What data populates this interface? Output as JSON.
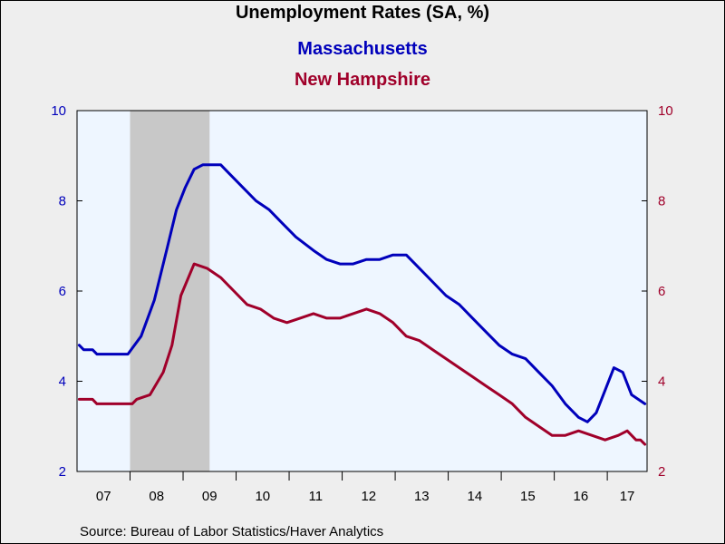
{
  "chart_data": {
    "type": "line",
    "title": "Unemployment Rates (SA, %)",
    "source": "Source:  Bureau of Labor Statistics/Haver Analytics",
    "x_tick_labels": [
      "07",
      "08",
      "09",
      "10",
      "11",
      "12",
      "13",
      "14",
      "15",
      "16",
      "17"
    ],
    "xlim": [
      "2007-01",
      "2017-09"
    ],
    "ylim": [
      2,
      10
    ],
    "y_ticks": [
      "2",
      "4",
      "6",
      "8",
      "10"
    ],
    "y2_ticks": [
      "2",
      "4",
      "6",
      "8",
      "10"
    ],
    "recession_shading": {
      "start": "2008-01",
      "end": "2009-06"
    },
    "grid": false,
    "legend_placement": "top-center",
    "colors": {
      "massachusetts": "#0000bb",
      "new_hampshire": "#a0002a",
      "recession": "#c8c8c8",
      "plot_bg": "#eef6ff",
      "background": "#eeeeee"
    },
    "series": [
      {
        "name": "Massachusetts",
        "axis": "left",
        "points": [
          [
            "2007-01",
            4.8
          ],
          [
            "2007-02",
            4.7
          ],
          [
            "2007-04",
            4.7
          ],
          [
            "2007-05",
            4.6
          ],
          [
            "2007-12",
            4.6
          ],
          [
            "2008-03",
            5.0
          ],
          [
            "2008-06",
            5.8
          ],
          [
            "2008-09",
            7.0
          ],
          [
            "2008-11",
            7.8
          ],
          [
            "2009-01",
            8.3
          ],
          [
            "2009-03",
            8.7
          ],
          [
            "2009-05",
            8.8
          ],
          [
            "2009-09",
            8.8
          ],
          [
            "2009-11",
            8.6
          ],
          [
            "2010-02",
            8.3
          ],
          [
            "2010-05",
            8.0
          ],
          [
            "2010-08",
            7.8
          ],
          [
            "2010-11",
            7.5
          ],
          [
            "2011-02",
            7.2
          ],
          [
            "2011-06",
            6.9
          ],
          [
            "2011-09",
            6.7
          ],
          [
            "2011-12",
            6.6
          ],
          [
            "2012-03",
            6.6
          ],
          [
            "2012-06",
            6.7
          ],
          [
            "2012-09",
            6.7
          ],
          [
            "2012-12",
            6.8
          ],
          [
            "2013-03",
            6.8
          ],
          [
            "2013-06",
            6.5
          ],
          [
            "2013-09",
            6.2
          ],
          [
            "2013-12",
            5.9
          ],
          [
            "2014-03",
            5.7
          ],
          [
            "2014-06",
            5.4
          ],
          [
            "2014-09",
            5.1
          ],
          [
            "2014-12",
            4.8
          ],
          [
            "2015-03",
            4.6
          ],
          [
            "2015-06",
            4.5
          ],
          [
            "2015-09",
            4.2
          ],
          [
            "2015-12",
            3.9
          ],
          [
            "2016-03",
            3.5
          ],
          [
            "2016-06",
            3.2
          ],
          [
            "2016-08",
            3.1
          ],
          [
            "2016-10",
            3.3
          ],
          [
            "2016-12",
            3.8
          ],
          [
            "2017-02",
            4.3
          ],
          [
            "2017-04",
            4.2
          ],
          [
            "2017-06",
            3.7
          ],
          [
            "2017-09",
            3.5
          ]
        ]
      },
      {
        "name": "New Hampshire",
        "axis": "right",
        "points": [
          [
            "2007-01",
            3.6
          ],
          [
            "2007-04",
            3.6
          ],
          [
            "2007-05",
            3.5
          ],
          [
            "2008-01",
            3.5
          ],
          [
            "2008-02",
            3.6
          ],
          [
            "2008-05",
            3.7
          ],
          [
            "2008-08",
            4.2
          ],
          [
            "2008-10",
            4.8
          ],
          [
            "2008-12",
            5.9
          ],
          [
            "2009-03",
            6.6
          ],
          [
            "2009-06",
            6.5
          ],
          [
            "2009-09",
            6.3
          ],
          [
            "2009-12",
            6.0
          ],
          [
            "2010-03",
            5.7
          ],
          [
            "2010-06",
            5.6
          ],
          [
            "2010-09",
            5.4
          ],
          [
            "2010-12",
            5.3
          ],
          [
            "2011-03",
            5.4
          ],
          [
            "2011-06",
            5.5
          ],
          [
            "2011-09",
            5.4
          ],
          [
            "2011-12",
            5.4
          ],
          [
            "2012-03",
            5.5
          ],
          [
            "2012-06",
            5.6
          ],
          [
            "2012-09",
            5.5
          ],
          [
            "2012-12",
            5.3
          ],
          [
            "2013-03",
            5.0
          ],
          [
            "2013-06",
            4.9
          ],
          [
            "2013-09",
            4.7
          ],
          [
            "2013-12",
            4.5
          ],
          [
            "2014-03",
            4.3
          ],
          [
            "2014-06",
            4.1
          ],
          [
            "2014-09",
            3.9
          ],
          [
            "2014-12",
            3.7
          ],
          [
            "2015-03",
            3.5
          ],
          [
            "2015-06",
            3.2
          ],
          [
            "2015-09",
            3.0
          ],
          [
            "2015-12",
            2.8
          ],
          [
            "2016-03",
            2.8
          ],
          [
            "2016-06",
            2.9
          ],
          [
            "2016-09",
            2.8
          ],
          [
            "2016-12",
            2.7
          ],
          [
            "2017-03",
            2.8
          ],
          [
            "2017-05",
            2.9
          ],
          [
            "2017-07",
            2.7
          ],
          [
            "2017-08",
            2.7
          ],
          [
            "2017-09",
            2.6
          ]
        ]
      }
    ]
  }
}
